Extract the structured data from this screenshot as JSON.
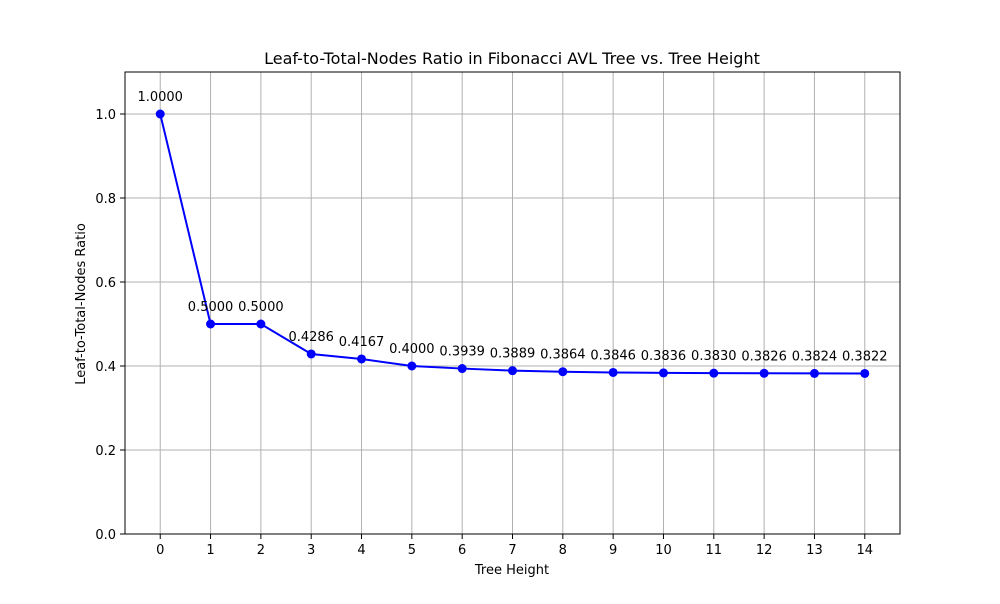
{
  "chart_data": {
    "type": "line",
    "title": "Leaf-to-Total-Nodes Ratio in Fibonacci AVL Tree vs. Tree Height",
    "xlabel": "Tree Height",
    "ylabel": "Leaf-to-Total-Nodes Ratio",
    "x": [
      0,
      1,
      2,
      3,
      4,
      5,
      6,
      7,
      8,
      9,
      10,
      11,
      12,
      13,
      14
    ],
    "x_tick_labels": [
      "0",
      "1",
      "2",
      "3",
      "4",
      "5",
      "6",
      "7",
      "8",
      "9",
      "10",
      "11",
      "12",
      "13",
      "14"
    ],
    "xlim": [
      -0.7,
      14.7
    ],
    "ylim": [
      0,
      1.1
    ],
    "y_ticks": [
      0.0,
      0.2,
      0.4,
      0.6,
      0.8,
      1.0
    ],
    "y_tick_labels": [
      "0.0",
      "0.2",
      "0.4",
      "0.6",
      "0.8",
      "1.0"
    ],
    "grid": true,
    "series": [
      {
        "values": [
          1.0,
          0.5,
          0.5,
          0.4286,
          0.4167,
          0.4,
          0.3939,
          0.3889,
          0.3864,
          0.3846,
          0.3836,
          0.383,
          0.3826,
          0.3824,
          0.3822
        ],
        "data_labels": [
          "1.0000",
          "0.5000",
          "0.5000",
          "0.4286",
          "0.4167",
          "0.4000",
          "0.3939",
          "0.3889",
          "0.3864",
          "0.3846",
          "0.3836",
          "0.3830",
          "0.3826",
          "0.3824",
          "0.3822"
        ],
        "color": "#0000ff",
        "marker": "circle"
      }
    ]
  },
  "colors": {
    "grid": "#b0b0b0",
    "axes": "#000000",
    "series": "#0000ff"
  }
}
